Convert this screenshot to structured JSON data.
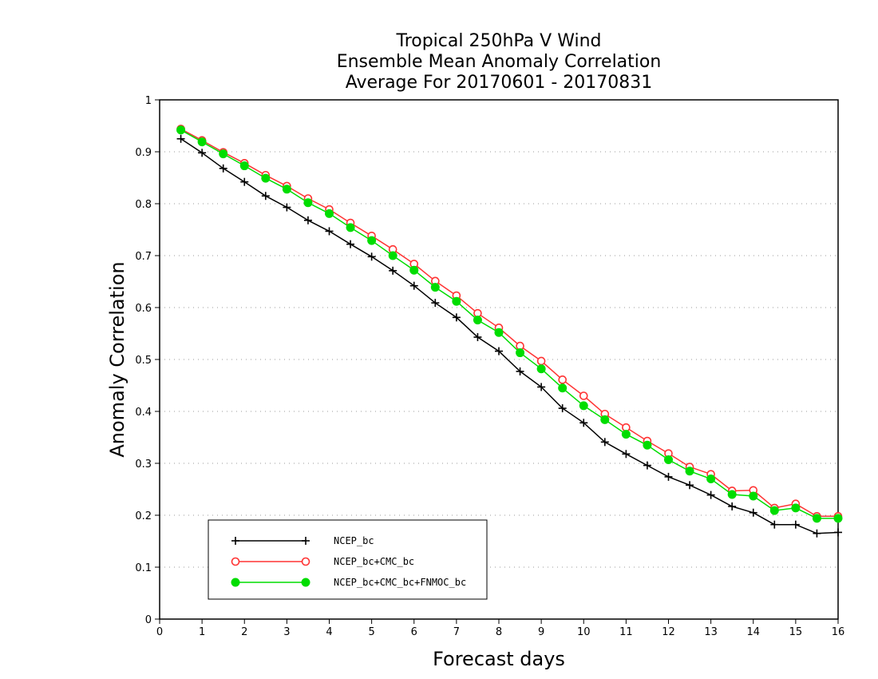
{
  "chart_data": {
    "type": "line",
    "title_lines": [
      "Tropical 250hPa V Wind",
      "Ensemble Mean Anomaly Correlation",
      "Average For 20170601 - 20170831"
    ],
    "xlabel": "Forecast days",
    "ylabel": "Anomaly Correlation",
    "xlim": [
      0,
      16
    ],
    "ylim": [
      0,
      1
    ],
    "x_ticks": [
      0,
      1,
      2,
      3,
      4,
      5,
      6,
      7,
      8,
      9,
      10,
      11,
      12,
      13,
      14,
      15,
      16
    ],
    "y_ticks": [
      0,
      0.1,
      0.2,
      0.3,
      0.4,
      0.5,
      0.6,
      0.7,
      0.8,
      0.9,
      1
    ],
    "y_tick_labels": [
      "0",
      "0.1",
      "0.2",
      "0.3",
      "0.4",
      "0.5",
      "0.6",
      "0.7",
      "0.8",
      "0.9",
      "1"
    ],
    "x_tick_labels": [
      "0",
      "1",
      "2",
      "3",
      "4",
      "5",
      "6",
      "7",
      "8",
      "9",
      "10",
      "11",
      "12",
      "13",
      "14",
      "15",
      "16"
    ],
    "grid": "horizontal-dotted",
    "legend_position": "bottom-left",
    "x": [
      0.5,
      1,
      1.5,
      2,
      2.5,
      3,
      3.5,
      4,
      4.5,
      5,
      5.5,
      6,
      6.5,
      7,
      7.5,
      8,
      8.5,
      9,
      9.5,
      10,
      10.5,
      11,
      11.5,
      12,
      12.5,
      13,
      13.5,
      14,
      14.5,
      15,
      15.5,
      16
    ],
    "series": [
      {
        "name": "NCEP_bc",
        "color": "#000000",
        "marker": "plus",
        "values": [
          0.925,
          0.898,
          0.868,
          0.842,
          0.815,
          0.793,
          0.768,
          0.747,
          0.722,
          0.698,
          0.671,
          0.642,
          0.609,
          0.581,
          0.543,
          0.516,
          0.477,
          0.447,
          0.406,
          0.378,
          0.341,
          0.318,
          0.296,
          0.274,
          0.258,
          0.239,
          0.217,
          0.205,
          0.182,
          0.182,
          0.165,
          0.167
        ]
      },
      {
        "name": "NCEP_bc+CMC_bc",
        "color": "#ff3333",
        "marker": "open-circle",
        "values": [
          0.944,
          0.922,
          0.899,
          0.878,
          0.855,
          0.834,
          0.81,
          0.789,
          0.763,
          0.738,
          0.712,
          0.684,
          0.651,
          0.623,
          0.589,
          0.561,
          0.526,
          0.497,
          0.461,
          0.43,
          0.395,
          0.369,
          0.343,
          0.319,
          0.293,
          0.279,
          0.247,
          0.248,
          0.214,
          0.222,
          0.198,
          0.198
        ]
      },
      {
        "name": "NCEP_bc+CMC_bc+FNMOC_bc",
        "color": "#00dd00",
        "marker": "filled-circle",
        "values": [
          0.942,
          0.919,
          0.896,
          0.873,
          0.849,
          0.828,
          0.802,
          0.781,
          0.754,
          0.729,
          0.7,
          0.672,
          0.639,
          0.612,
          0.576,
          0.552,
          0.513,
          0.482,
          0.445,
          0.411,
          0.384,
          0.356,
          0.335,
          0.307,
          0.285,
          0.27,
          0.24,
          0.237,
          0.209,
          0.214,
          0.194,
          0.194
        ]
      }
    ]
  }
}
